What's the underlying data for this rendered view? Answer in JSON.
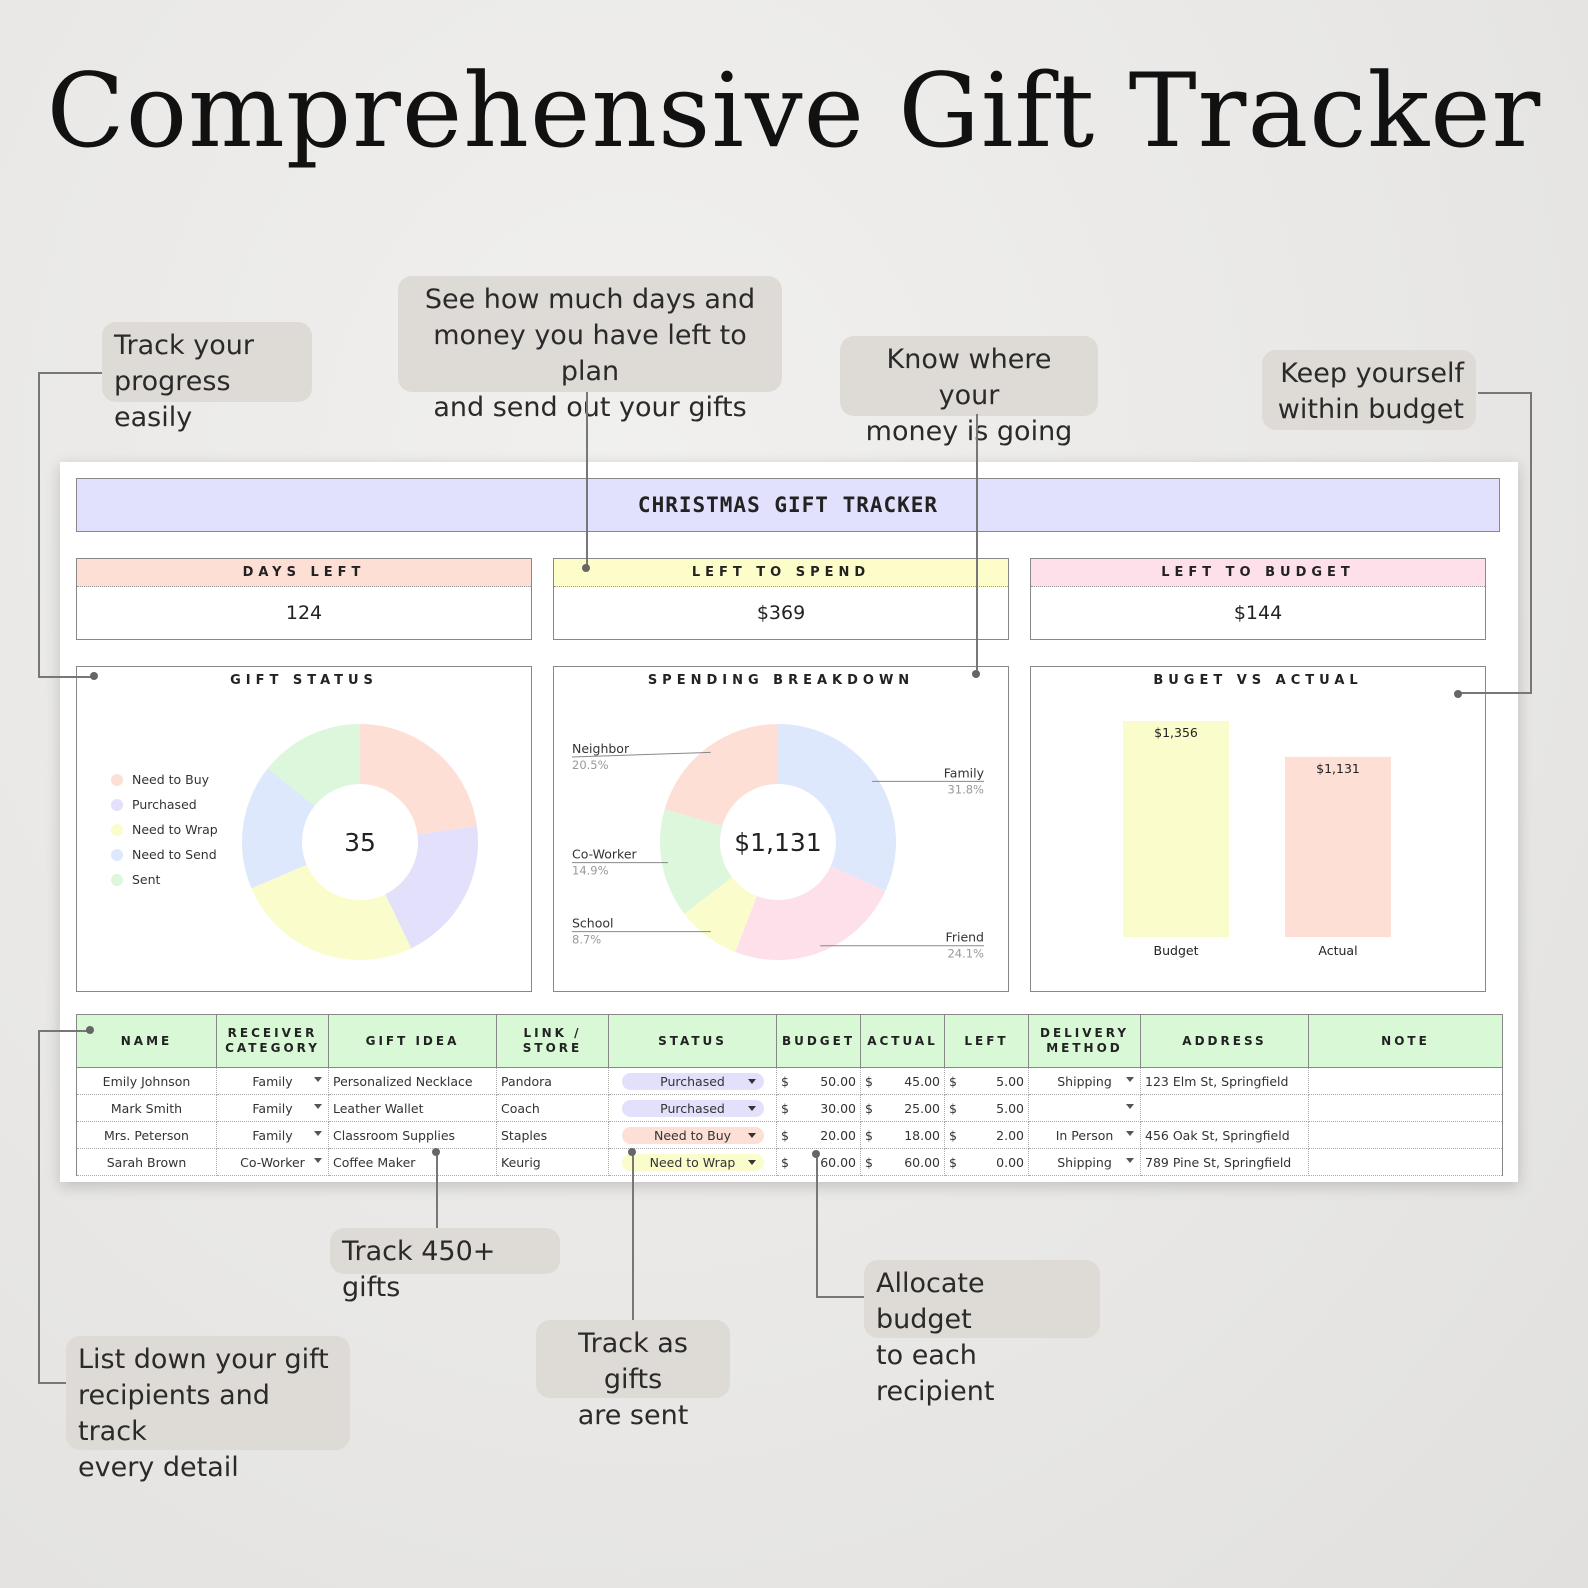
{
  "page_title": "Comprehensive Gift Tracker",
  "callouts": {
    "progress": [
      "Track your",
      "progress easily"
    ],
    "days_money": [
      "See how much days and",
      "money you have left to plan",
      "and send out your gifts"
    ],
    "money_going": [
      "Know where your",
      "money is going"
    ],
    "budget": [
      "Keep yourself",
      "within budget"
    ],
    "gifts": [
      "Track 450+ gifts"
    ],
    "sent": [
      "Track as gifts",
      "are sent"
    ],
    "allocate": [
      "Allocate budget",
      "to each recipient"
    ],
    "list": [
      "List down your gift",
      "recipients and track",
      "every detail"
    ]
  },
  "sheet": {
    "title": "CHRISTMAS GIFT TRACKER",
    "stats": [
      {
        "label": "DAYS LEFT",
        "value": "124",
        "color": "#fddfd6"
      },
      {
        "label": "LEFT TO SPEND",
        "value": "$369",
        "color": "#fdfdc9"
      },
      {
        "label": "LEFT TO BUDGET",
        "value": "$144",
        "color": "#fde0ea"
      }
    ],
    "panels": {
      "status_title": "GIFT STATUS",
      "spending_title": "SPENDING BREAKDOWN",
      "budget_title": "BUGET VS ACTUAL",
      "status_center": "35",
      "spending_center": "$1,131"
    },
    "table": {
      "headers": [
        [
          "NAME"
        ],
        [
          "RECEIVER",
          "CATEGORY"
        ],
        [
          "GIFT IDEA"
        ],
        [
          "LINK /",
          "STORE"
        ],
        [
          "STATUS"
        ],
        [
          "BUDGET"
        ],
        [
          "ACTUAL"
        ],
        [
          "LEFT"
        ],
        [
          "DELIVERY",
          "METHOD"
        ],
        [
          "ADDRESS"
        ],
        [
          "NOTE"
        ]
      ],
      "currency": "$",
      "rows": [
        {
          "name": "Emily Johnson",
          "category": "Family",
          "gift": "Personalized Necklace",
          "store": "Pandora",
          "status": "Purchased",
          "budget": "50.00",
          "actual": "45.00",
          "left": "5.00",
          "delivery": "Shipping",
          "address": "123 Elm St, Springfield",
          "note": ""
        },
        {
          "name": "Mark Smith",
          "category": "Family",
          "gift": "Leather Wallet",
          "store": "Coach",
          "status": "Purchased",
          "budget": "30.00",
          "actual": "25.00",
          "left": "5.00",
          "delivery": "",
          "address": "",
          "note": ""
        },
        {
          "name": "Mrs. Peterson",
          "category": "Family",
          "gift": "Classroom Supplies",
          "store": "Staples",
          "status": "Need to Buy",
          "budget": "20.00",
          "actual": "18.00",
          "left": "2.00",
          "delivery": "In Person",
          "address": "456 Oak St, Springfield",
          "note": ""
        },
        {
          "name": "Sarah Brown",
          "category": "Co-Worker",
          "gift": "Coffee Maker",
          "store": "Keurig",
          "status": "Need to Wrap",
          "budget": "60.00",
          "actual": "60.00",
          "left": "0.00",
          "delivery": "Shipping",
          "address": "789 Pine St, Springfield",
          "note": ""
        }
      ]
    }
  },
  "status_colors": {
    "Need to Buy": "#fddfd6",
    "Purchased": "#e2e0fb",
    "Need to Wrap": "#fbfccc",
    "Need to Send": "#dde8fc",
    "Sent": "#dcf7db"
  },
  "chart_data": [
    {
      "type": "pie",
      "title": "GIFT STATUS",
      "center_label": "35",
      "labels": [
        "Need to Buy",
        "Purchased",
        "Need to Wrap",
        "Need to Send",
        "Sent"
      ],
      "values": [
        8,
        7,
        9,
        6,
        5
      ],
      "colors": [
        "#fddfd6",
        "#e2e0fb",
        "#fbfccc",
        "#dde8fc",
        "#dcf7db"
      ],
      "legend": "left"
    },
    {
      "type": "pie",
      "title": "SPENDING BREAKDOWN",
      "center_label": "$1,131",
      "labels": [
        "Family",
        "Friend",
        "School",
        "Co-Worker",
        "Neighbor"
      ],
      "values": [
        31.8,
        24.1,
        8.7,
        14.9,
        20.5
      ],
      "value_labels": [
        "31.8%",
        "24.1%",
        "8.7%",
        "14.9%",
        "20.5%"
      ],
      "colors": [
        "#dde8fc",
        "#fde0ea",
        "#fbfccc",
        "#dcf7db",
        "#fddfd6"
      ]
    },
    {
      "type": "bar",
      "title": "BUGET VS ACTUAL",
      "categories": [
        "Budget",
        "Actual"
      ],
      "values": [
        1356,
        1131
      ],
      "value_labels": [
        "$1,356",
        "$1,131"
      ],
      "colors": [
        "#fbfccc",
        "#fddfd6"
      ],
      "ylim": [
        0,
        1356
      ]
    }
  ]
}
